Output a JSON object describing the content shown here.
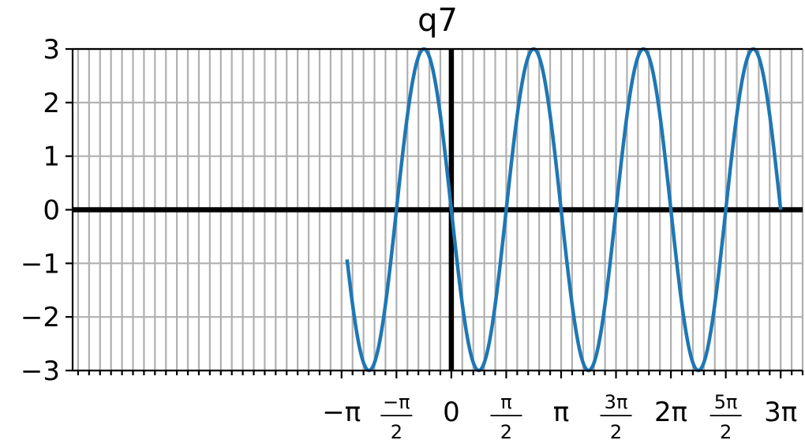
{
  "chart_data": {
    "type": "line",
    "title": "q7",
    "xlabel": "",
    "ylabel": "",
    "xlim": [
      -3.45,
      3.2
    ],
    "xlim_units": "multiples of pi",
    "ylim": [
      -3,
      3
    ],
    "grid": true,
    "zero_axes": true,
    "y_ticks": [
      {
        "value": 3,
        "label": "3"
      },
      {
        "value": 2,
        "label": "2"
      },
      {
        "value": 1,
        "label": "1"
      },
      {
        "value": 0,
        "label": "0"
      },
      {
        "value": -1,
        "label": "−1"
      },
      {
        "value": -2,
        "label": "−2"
      },
      {
        "value": -3,
        "label": "−3"
      }
    ],
    "x_ticks": [
      {
        "value_pi": -1,
        "label": "−π",
        "fraction": false
      },
      {
        "value_pi": -0.5,
        "num": "−π",
        "den": "2",
        "fraction": true
      },
      {
        "value_pi": 0,
        "label": "0",
        "fraction": false
      },
      {
        "value_pi": 0.5,
        "num": "π",
        "den": "2",
        "fraction": true
      },
      {
        "value_pi": 1,
        "label": "π",
        "fraction": false
      },
      {
        "value_pi": 1.5,
        "num": "3π",
        "den": "2",
        "fraction": true
      },
      {
        "value_pi": 2,
        "label": "2π",
        "fraction": false
      },
      {
        "value_pi": 2.5,
        "num": "5π",
        "den": "2",
        "fraction": true
      },
      {
        "value_pi": 3,
        "label": "3π",
        "fraction": false
      }
    ],
    "minor_tick_step_pi": 0.1,
    "series": [
      {
        "name": "q7",
        "color": "#1f77b4",
        "function": "y = -3*sin(2x)",
        "amplitude": 3,
        "frequency": 2,
        "sign": -1,
        "x_start_pi": -0.95,
        "x_end_pi": 3.0
      }
    ]
  }
}
